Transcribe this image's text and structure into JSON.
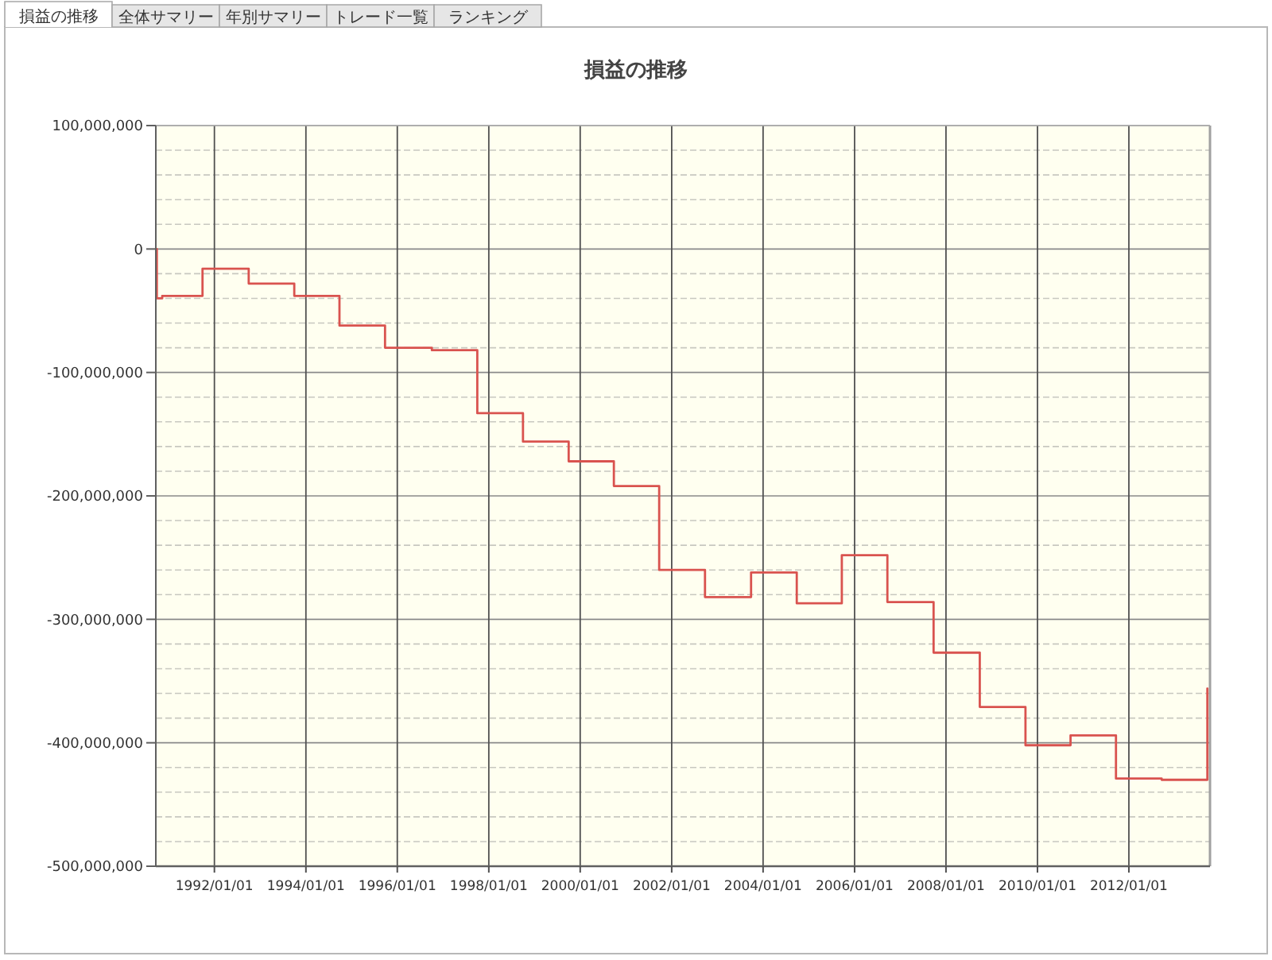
{
  "chart_data": {
    "type": "step",
    "title": "損益の推移",
    "annotations": [
      "損益の推移",
      "全体サマリー",
      "年別サマリー",
      "トレード一覧",
      "ランキング"
    ],
    "x": [
      "1990-09-20",
      "1990-09-28",
      "1990-11-10",
      "1991-09-28",
      "1992-10-01",
      "1993-09-30",
      "1994-09-26",
      "1995-09-25",
      "1996-10-03",
      "1997-10-01",
      "1998-10-01",
      "1999-10-01",
      "2000-09-26",
      "2001-09-23",
      "2002-09-24",
      "2003-09-27",
      "2004-09-26",
      "2005-09-21",
      "2006-09-20",
      "2007-09-24",
      "2008-09-27",
      "2009-09-27",
      "2010-09-22",
      "2011-09-20",
      "2012-09-19",
      "2013-09-19"
    ],
    "series": [
      {
        "color": "#d9534f",
        "values": [
          0,
          -40000000,
          -38000000,
          -16000000,
          -28000000,
          -38000000,
          -62000000,
          -80000000,
          -82000000,
          -133000000,
          -156000000,
          -172000000,
          -192000000,
          -260000000,
          -282000000,
          -262000000,
          -287000000,
          -248000000,
          -286000000,
          -327000000,
          -371000000,
          -402000000,
          -394000000,
          -429000000,
          -430000000,
          -356000000
        ]
      }
    ],
    "xlim": [
      "1990-09-20",
      "2013-10-10"
    ],
    "xticks": [
      {
        "value": "1992-01-01",
        "label": "1992/01/01"
      },
      {
        "value": "1994-01-01",
        "label": "1994/01/01"
      },
      {
        "value": "1996-01-01",
        "label": "1996/01/01"
      },
      {
        "value": "1998-01-01",
        "label": "1998/01/01"
      },
      {
        "value": "2000-01-01",
        "label": "2000/01/01"
      },
      {
        "value": "2002-01-01",
        "label": "2002/01/01"
      },
      {
        "value": "2004-01-01",
        "label": "2004/01/01"
      },
      {
        "value": "2006-01-01",
        "label": "2006/01/01"
      },
      {
        "value": "2008-01-01",
        "label": "2008/01/01"
      },
      {
        "value": "2010-01-01",
        "label": "2010/01/01"
      },
      {
        "value": "2012-01-01",
        "label": "2012/01/01"
      }
    ],
    "ylim": [
      -500000000,
      100000000
    ],
    "yticks": [
      {
        "value": -500000000,
        "label": "-500,000,000"
      },
      {
        "value": -480000000,
        "label": null
      },
      {
        "value": -460000000,
        "label": null
      },
      {
        "value": -440000000,
        "label": null
      },
      {
        "value": -420000000,
        "label": null
      },
      {
        "value": -400000000,
        "label": "-400,000,000"
      },
      {
        "value": -380000000,
        "label": null
      },
      {
        "value": -360000000,
        "label": null
      },
      {
        "value": -340000000,
        "label": null
      },
      {
        "value": -320000000,
        "label": null
      },
      {
        "value": -300000000,
        "label": "-300,000,000"
      },
      {
        "value": -280000000,
        "label": null
      },
      {
        "value": -260000000,
        "label": null
      },
      {
        "value": -240000000,
        "label": null
      },
      {
        "value": -220000000,
        "label": null
      },
      {
        "value": -200000000,
        "label": "-200,000,000"
      },
      {
        "value": -180000000,
        "label": null
      },
      {
        "value": -160000000,
        "label": null
      },
      {
        "value": -140000000,
        "label": null
      },
      {
        "value": -120000000,
        "label": null
      },
      {
        "value": -100000000,
        "label": "-100,000,000"
      },
      {
        "value": -80000000,
        "label": null
      },
      {
        "value": -60000000,
        "label": null
      },
      {
        "value": -40000000,
        "label": null
      },
      {
        "value": -20000000,
        "label": null
      },
      {
        "value": 0,
        "label": "0"
      },
      {
        "value": 20000000,
        "label": null
      },
      {
        "value": 40000000,
        "label": null
      },
      {
        "value": 60000000,
        "label": null
      },
      {
        "value": 80000000,
        "label": null
      },
      {
        "value": 100000000,
        "label": "100,000,000"
      }
    ],
    "grid": true
  }
}
